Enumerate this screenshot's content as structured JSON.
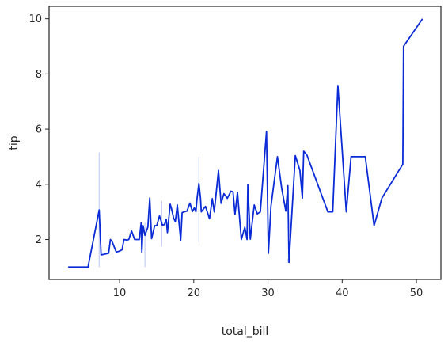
{
  "chart_data": {
    "type": "line",
    "xlabel": "total_bill",
    "ylabel": "tip",
    "xlim": [
      0.5,
      53.3
    ],
    "ylim": [
      0.55,
      10.45
    ],
    "xticks": [
      10,
      20,
      30,
      40,
      50
    ],
    "yticks": [
      2,
      4,
      6,
      8,
      10
    ],
    "grid": false,
    "colors": {
      "line": "#0a2bd6",
      "band": "#c8cff3",
      "axes": "#262626"
    },
    "series": [
      {
        "x": [
          3.07,
          5.75,
          7.25,
          7.51,
          8.52,
          8.77,
          9.0,
          9.55,
          9.78,
          10.07,
          10.33,
          10.59,
          11.02,
          11.24,
          11.61,
          12.03,
          12.43,
          12.66,
          12.9,
          13.0,
          13.16,
          13.42,
          13.81,
          14.07,
          14.31,
          14.73,
          15.01,
          15.38,
          15.77,
          16.04,
          16.29,
          16.45,
          16.82,
          16.99,
          17.29,
          17.51,
          17.78,
          18.24,
          18.43,
          18.69,
          19.08,
          19.49,
          19.81,
          20.08,
          20.29,
          20.45,
          20.69,
          20.9,
          21.01,
          21.58,
          22.12,
          22.49,
          22.76,
          23.33,
          23.68,
          24.06,
          24.52,
          25.0,
          25.29,
          25.56,
          25.89,
          26.41,
          26.88,
          27.18,
          27.28,
          27.61,
          28.15,
          28.55,
          28.97,
          29.8,
          30.06,
          30.4,
          31.27,
          31.85,
          32.4,
          32.68,
          32.83,
          33.68,
          34.3,
          34.63,
          34.81,
          35.26,
          38.07,
          38.73,
          39.42,
          40.55,
          41.19,
          43.11,
          44.3,
          45.35,
          48.17,
          48.27,
          50.81
        ],
        "y": [
          1.0,
          1.0,
          3.07,
          1.44,
          1.5,
          2.0,
          1.92,
          1.55,
          1.56,
          1.59,
          1.63,
          2.0,
          1.98,
          2.0,
          2.31,
          2.0,
          2.0,
          2.0,
          2.6,
          1.54,
          2.5,
          2.15,
          2.45,
          3.5,
          2.03,
          2.5,
          2.5,
          2.85,
          2.52,
          2.54,
          2.73,
          2.25,
          3.28,
          3.12,
          2.77,
          2.65,
          3.25,
          1.98,
          2.97,
          3.0,
          3.03,
          3.32,
          3.01,
          3.15,
          3.0,
          3.5,
          4.03,
          3.5,
          3.0,
          3.2,
          2.75,
          3.48,
          3.0,
          4.5,
          3.31,
          3.66,
          3.49,
          3.75,
          3.72,
          2.91,
          3.71,
          2.0,
          2.44,
          2.0,
          4.0,
          2.01,
          3.25,
          2.93,
          3.0,
          5.92,
          1.5,
          3.2,
          5.0,
          3.85,
          3.03,
          3.95,
          1.17,
          5.04,
          4.5,
          3.5,
          5.2,
          5.05,
          3.0,
          3.0,
          7.58,
          3.0,
          5.0,
          5.0,
          2.5,
          3.5,
          4.73,
          9.0,
          10.0
        ]
      }
    ]
  }
}
